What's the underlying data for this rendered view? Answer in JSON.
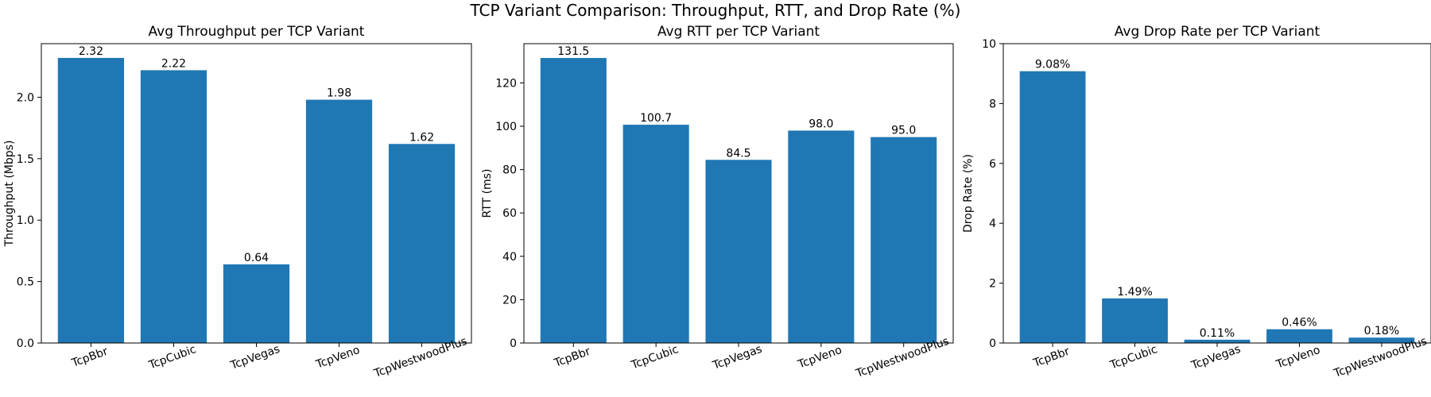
{
  "figure": {
    "suptitle": "TCP Variant Comparison: Throughput, RTT, and Drop Rate (%)"
  },
  "chart_data": [
    {
      "type": "bar",
      "title": "Avg Throughput per TCP Variant",
      "xlabel": "",
      "ylabel": "Throughput (Mbps)",
      "categories": [
        "TcpBbr",
        "TcpCubic",
        "TcpVegas",
        "TcpVeno",
        "TcpWestwoodPlus"
      ],
      "values": [
        2.32,
        2.22,
        0.64,
        1.98,
        1.62
      ],
      "value_labels": [
        "2.32",
        "2.22",
        "0.64",
        "1.98",
        "1.62"
      ],
      "ylim": [
        0,
        2.436
      ],
      "yticks": [
        0.0,
        0.5,
        1.0,
        1.5,
        2.0
      ],
      "ytick_labels": [
        "0.0",
        "0.5",
        "1.0",
        "1.5",
        "2.0"
      ],
      "bar_color": "#1f77b4",
      "grid": false,
      "legend": false
    },
    {
      "type": "bar",
      "title": "Avg RTT per TCP Variant",
      "xlabel": "",
      "ylabel": "RTT (ms)",
      "categories": [
        "TcpBbr",
        "TcpCubic",
        "TcpVegas",
        "TcpVeno",
        "TcpWestwoodPlus"
      ],
      "values": [
        131.5,
        100.7,
        84.5,
        98.0,
        95.0
      ],
      "value_labels": [
        "131.5",
        "100.7",
        "84.5",
        "98.0",
        "95.0"
      ],
      "ylim": [
        0,
        138.1
      ],
      "yticks": [
        0,
        20,
        40,
        60,
        80,
        100,
        120
      ],
      "ytick_labels": [
        "0",
        "20",
        "40",
        "60",
        "80",
        "100",
        "120"
      ],
      "bar_color": "#1f77b4",
      "grid": false,
      "legend": false
    },
    {
      "type": "bar",
      "title": "Avg Drop Rate per TCP Variant",
      "xlabel": "",
      "ylabel": "Drop Rate (%)",
      "categories": [
        "TcpBbr",
        "TcpCubic",
        "TcpVegas",
        "TcpVeno",
        "TcpWestwoodPlus"
      ],
      "values": [
        9.08,
        1.49,
        0.11,
        0.46,
        0.18
      ],
      "value_labels": [
        "9.08%",
        "1.49%",
        "0.11%",
        "0.46%",
        "0.18%"
      ],
      "ylim": [
        0,
        10.0
      ],
      "yticks": [
        0,
        2,
        4,
        6,
        8,
        10
      ],
      "ytick_labels": [
        "0",
        "2",
        "4",
        "6",
        "8",
        "10"
      ],
      "bar_color": "#1f77b4",
      "grid": false,
      "legend": false
    }
  ]
}
